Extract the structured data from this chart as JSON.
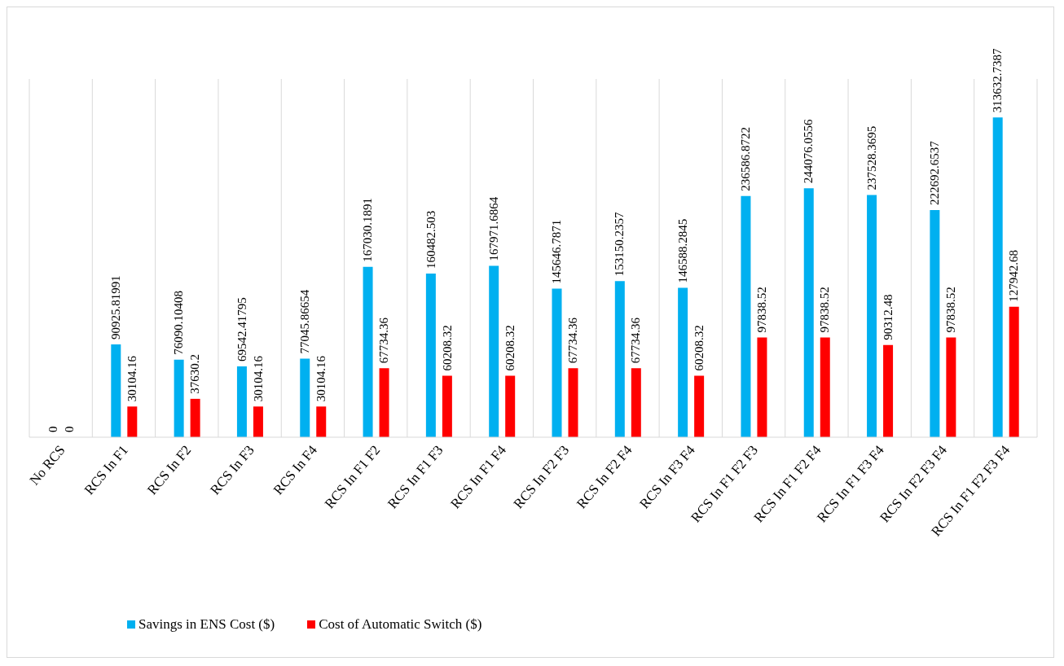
{
  "chart_data": {
    "type": "bar",
    "categories": [
      "No RCS",
      "RCS In F1",
      "RCS In F2",
      "RCS In F3",
      "RCS In F4",
      "RCS In F1 F2",
      "RCS In F1 F3",
      "RCS In F1 F4",
      "RCS In F2 F3",
      "RCS In F2 F4",
      "RCS In F3 F4",
      "RCS In F1 F2 F3",
      "RCS In F1 F2 F4",
      "RCS In F1 F3 F4",
      "RCS In F2 F3 F4",
      "RCS In F1 F2 F3 F4"
    ],
    "series": [
      {
        "name": "Savings in ENS Cost ($)",
        "color": "#00b0f0",
        "values": [
          0,
          90925.81991,
          76090.10408,
          69542.41795,
          77045.86654,
          167030.1891,
          160482.503,
          167971.6864,
          145646.7871,
          153150.2357,
          146588.2845,
          236586.8722,
          244076.0556,
          237528.3695,
          222692.6537,
          313632.7387
        ]
      },
      {
        "name": "Cost of Automatic Switch ($)",
        "color": "#ff0000",
        "values": [
          0,
          30104.16,
          37630.2,
          30104.16,
          30104.16,
          67734.36,
          60208.32,
          60208.32,
          67734.36,
          67734.36,
          60208.32,
          97838.52,
          97838.52,
          90312.48,
          97838.52,
          127942.68
        ]
      }
    ],
    "data_labels": true,
    "grid": "x",
    "legend": "bottom"
  }
}
